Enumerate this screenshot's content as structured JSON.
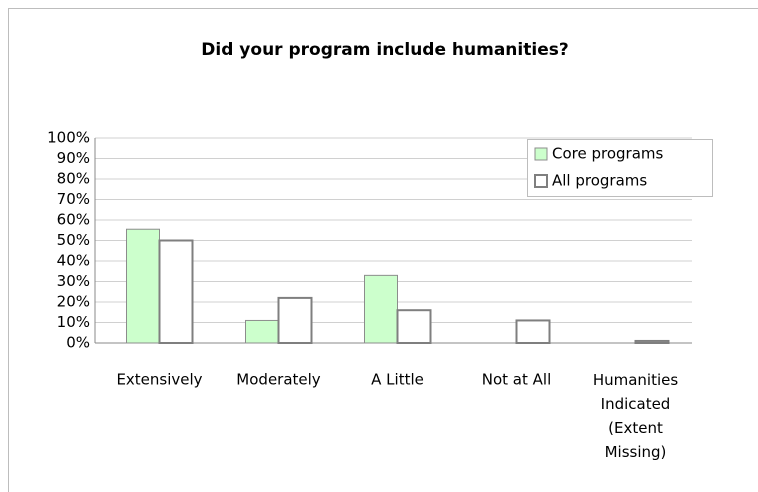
{
  "chart_data": {
    "type": "bar",
    "title": "Did your program include humanities?",
    "categories": [
      "Extensively",
      "Moderately",
      "A Little",
      "Not at All",
      "Humanities Indicated (Extent Missing)"
    ],
    "series": [
      {
        "name": "Core programs",
        "color": "#ccffcc",
        "values": [
          55.5,
          11,
          33,
          0,
          0
        ]
      },
      {
        "name": "All programs",
        "color": "#ffffff",
        "values": [
          50,
          22,
          16,
          11,
          1
        ]
      }
    ],
    "ylim": [
      0,
      100
    ],
    "yticks": [
      {
        "value": 0,
        "label": "0%"
      },
      {
        "value": 10,
        "label": "10%"
      },
      {
        "value": 20,
        "label": "20%"
      },
      {
        "value": 30,
        "label": "30%"
      },
      {
        "value": 40,
        "label": "40%"
      },
      {
        "value": 50,
        "label": "50%"
      },
      {
        "value": 60,
        "label": "60%"
      },
      {
        "value": 70,
        "label": "70%"
      },
      {
        "value": 80,
        "label": "80%"
      },
      {
        "value": 90,
        "label": "90%"
      },
      {
        "value": 100,
        "label": "100%"
      }
    ],
    "grid": true,
    "legend": "top-right"
  }
}
